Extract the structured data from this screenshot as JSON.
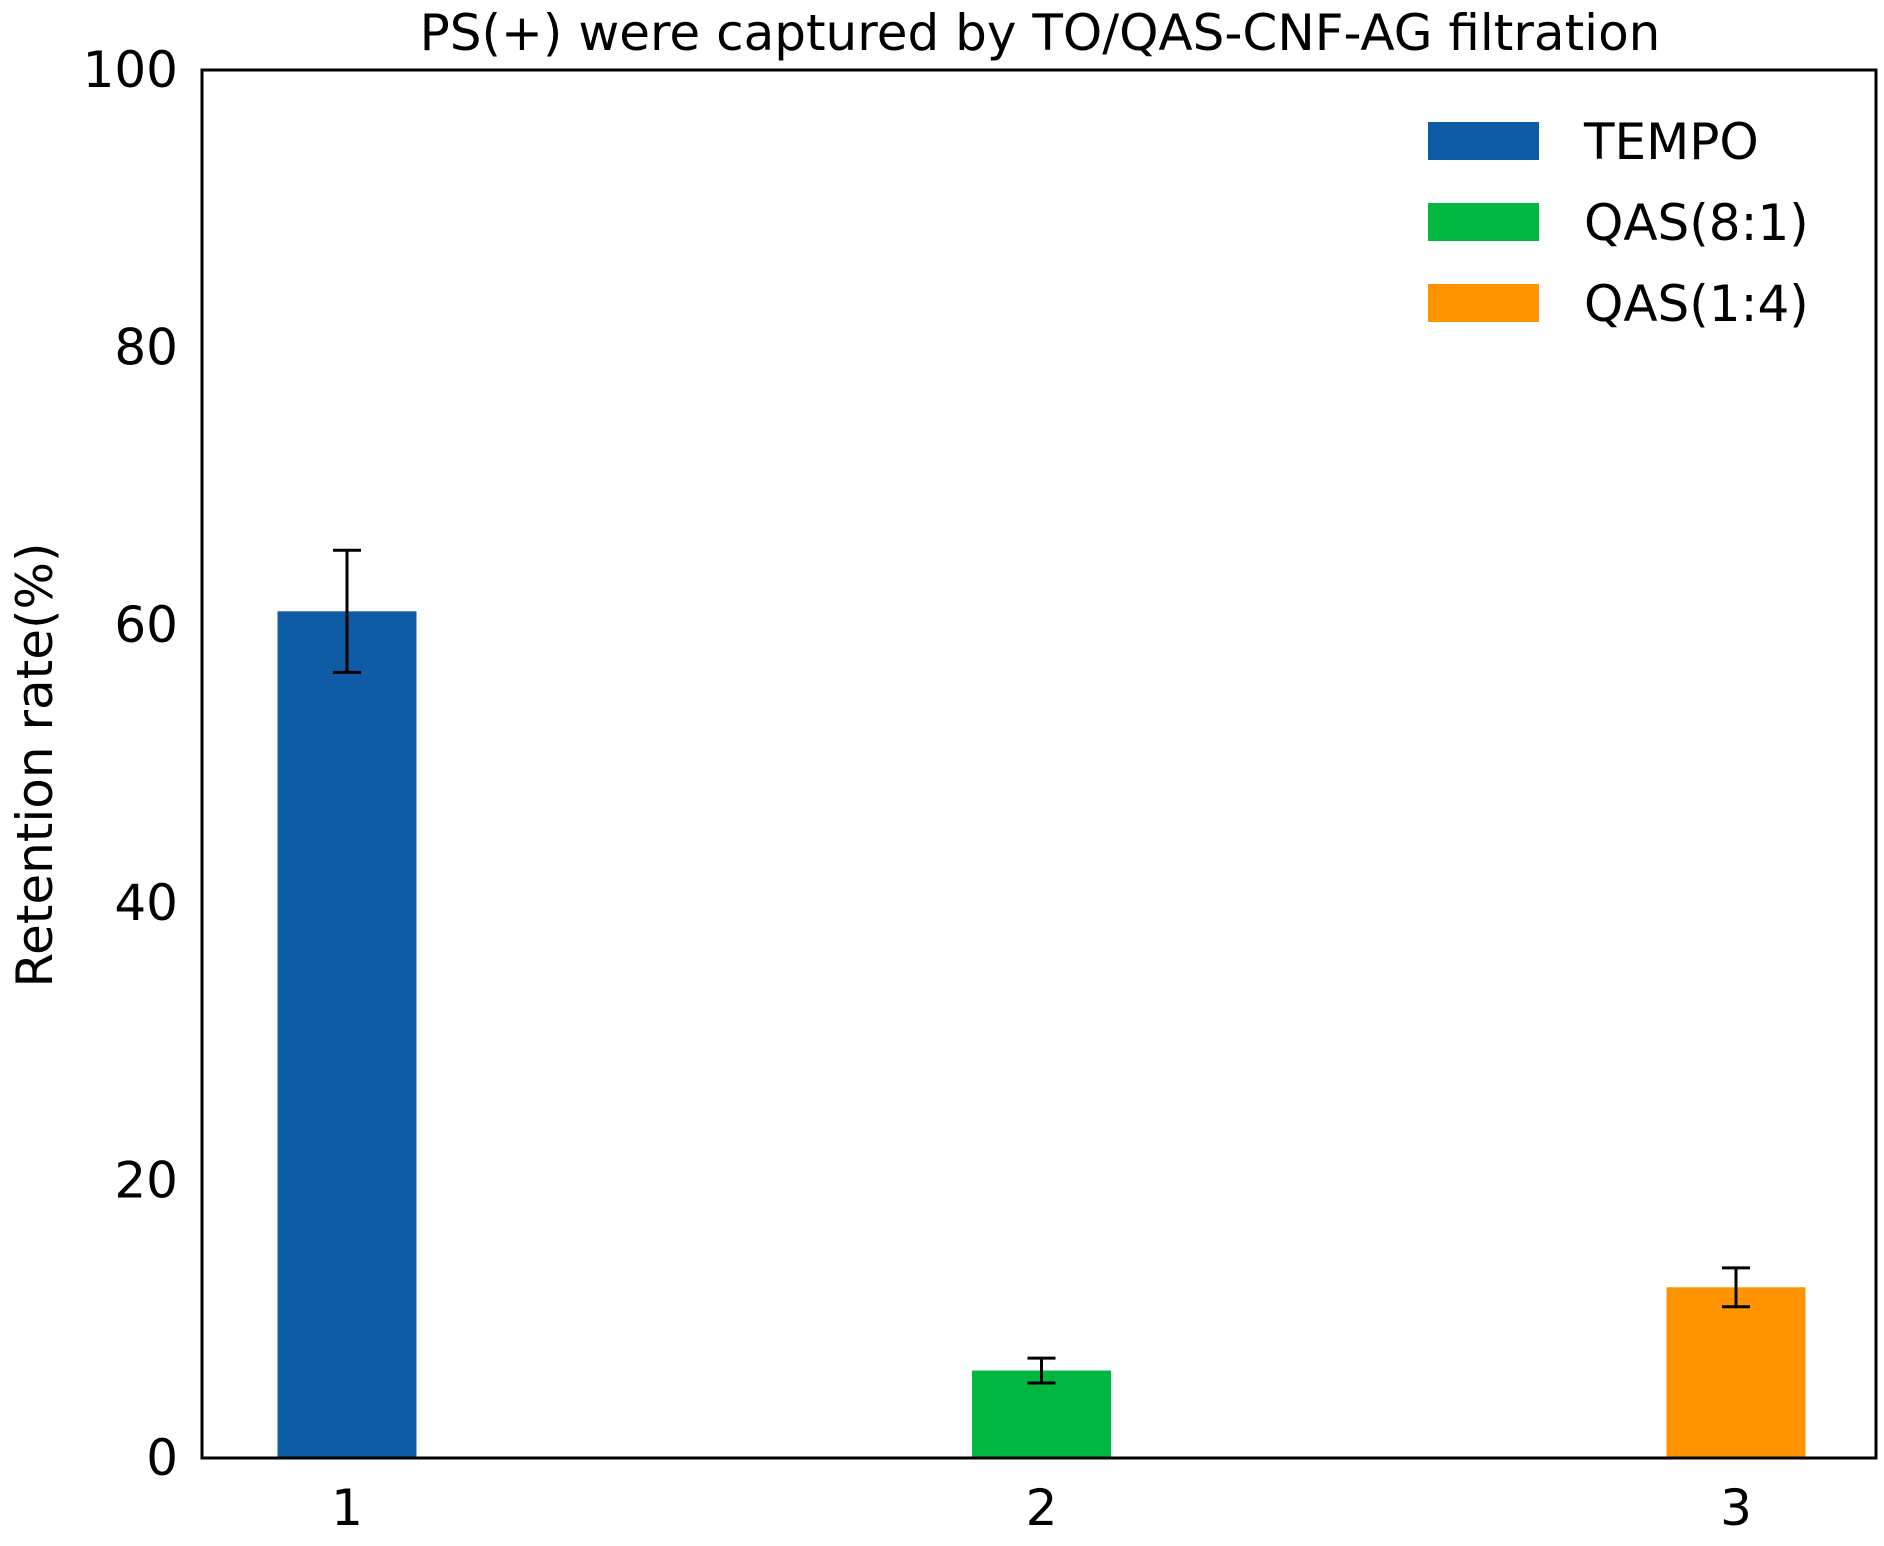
{
  "chart_data": {
    "type": "bar",
    "title": "PS(+) were captured by TO/QAS-CNF-AG filtration",
    "xlabel": "",
    "ylabel": "Retention rate(%)",
    "categories": [
      "1",
      "2",
      "3"
    ],
    "ylim": [
      0,
      100
    ],
    "yticks": [
      0,
      20,
      40,
      60,
      80,
      100
    ],
    "grid": false,
    "legend_position": "top-right",
    "series": [
      {
        "name": "TEMPO",
        "category_index": 0,
        "value": 61.0,
        "error": 4.4,
        "color": "#0f5ca6"
      },
      {
        "name": "QAS(8:1)",
        "category_index": 1,
        "value": 6.3,
        "error": 0.9,
        "color": "#00b740"
      },
      {
        "name": "QAS(1:4)",
        "category_index": 2,
        "value": 12.3,
        "error": 1.4,
        "color": "#ff9400"
      }
    ]
  }
}
